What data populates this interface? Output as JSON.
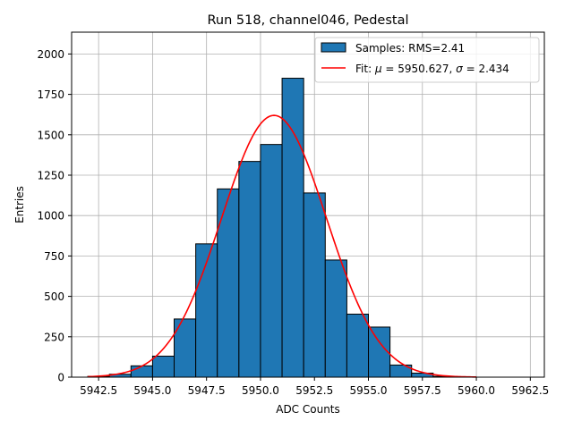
{
  "chart_data": {
    "type": "bar",
    "title": "Run 518, channel046, Pedestal",
    "xlabel": "ADC Counts",
    "ylabel": "Entries",
    "xlim": [
      5941.25,
      5963.15
    ],
    "ylim": [
      0,
      2135
    ],
    "xticks": [
      5942.5,
      5945.0,
      5947.5,
      5950.0,
      5952.5,
      5955.0,
      5957.5,
      5960.0,
      5962.5
    ],
    "xtick_labels": [
      "5942.5",
      "5945.0",
      "5947.5",
      "5950.0",
      "5952.5",
      "5955.0",
      "5957.5",
      "5960.0",
      "5962.5"
    ],
    "yticks": [
      0,
      250,
      500,
      750,
      1000,
      1250,
      1500,
      1750,
      2000
    ],
    "ytick_labels": [
      "0",
      "250",
      "500",
      "750",
      "1000",
      "1250",
      "1500",
      "1750",
      "2000"
    ],
    "grid": true,
    "legend_position": "top-right",
    "series": [
      {
        "name": "Samples: RMS=2.41",
        "kind": "histogram",
        "color": "#1f77b4",
        "edgecolor": "#000000",
        "bin_edges": [
          5942,
          5943,
          5944,
          5945,
          5946,
          5947,
          5948,
          5949,
          5950,
          5951,
          5952,
          5953,
          5954,
          5955,
          5956,
          5957,
          5958,
          5959
        ],
        "values": [
          5,
          18,
          70,
          130,
          360,
          825,
          1165,
          1335,
          1440,
          1850,
          1140,
          725,
          390,
          310,
          75,
          25,
          5
        ]
      },
      {
        "name": "Fit: μ = 5950.627, σ = 2.434",
        "name_parts": [
          "Fit: ",
          "μ",
          " = 5950.627, ",
          "σ",
          " = 2.434"
        ],
        "kind": "gaussian",
        "color": "#ff0000",
        "mu": 5950.627,
        "sigma": 2.434,
        "amplitude": 1620,
        "x_range": [
          5942,
          5960
        ]
      }
    ]
  }
}
